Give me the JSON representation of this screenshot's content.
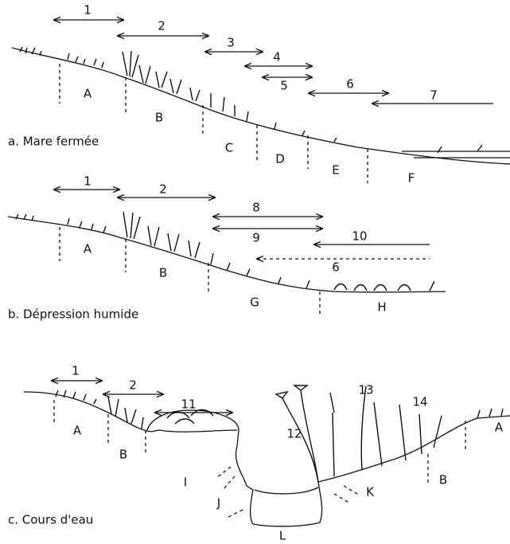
{
  "panels": [
    {
      "caption": "a. Mare fermée",
      "ranges": [
        "1",
        "2",
        "3",
        "4",
        "5",
        "6",
        "7"
      ],
      "zones": [
        "A",
        "B",
        "C",
        "D",
        "E",
        "F"
      ]
    },
    {
      "caption": "b. Dépression humide",
      "ranges": [
        "1",
        "2",
        "8",
        "9",
        "10",
        "6"
      ],
      "zones": [
        "A",
        "B",
        "G",
        "H"
      ]
    },
    {
      "caption": "c. Cours d'eau",
      "ranges": [
        "1",
        "2",
        "11"
      ],
      "plants": [
        "12",
        "13",
        "14"
      ],
      "zones": [
        "A",
        "B",
        "I",
        "J",
        "K",
        "L",
        "A",
        "B"
      ]
    }
  ]
}
